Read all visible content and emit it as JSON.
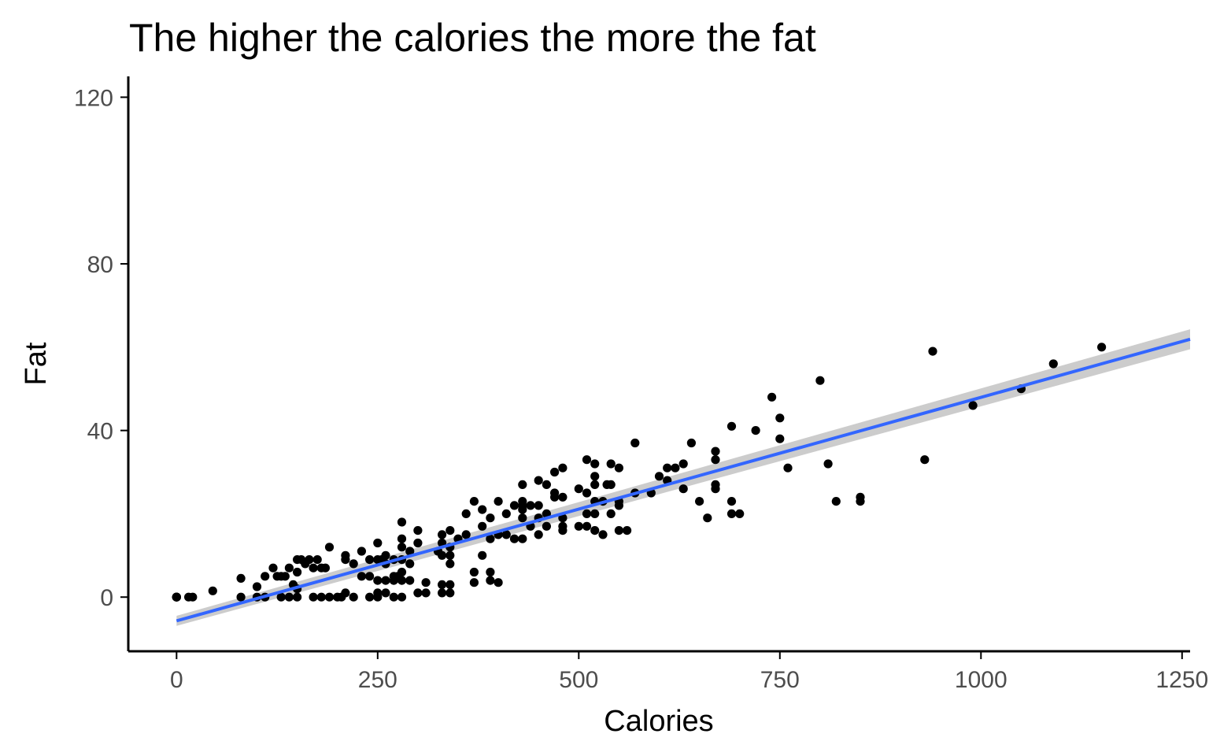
{
  "chart_data": {
    "type": "scatter",
    "title": "The higher the calories the more the fat",
    "xlabel": "Calories",
    "ylabel": "Fat",
    "xlim": [
      -60,
      1260
    ],
    "ylim": [
      -13,
      125
    ],
    "xticks": [
      0,
      250,
      500,
      750,
      1000,
      1250
    ],
    "xtick_labels": [
      "0",
      "250",
      "500",
      "750",
      "1000",
      "1250"
    ],
    "yticks": [
      0,
      40,
      80,
      120
    ],
    "ytick_labels": [
      "0",
      "40",
      "80",
      "120"
    ],
    "grid": false,
    "legend": "none",
    "colors": {
      "points": "#000000",
      "fit_line": "#3366ff",
      "confidence_band": "#cccccc",
      "axis": "#000000",
      "tick_label": "#4d4d4d"
    },
    "fit": {
      "method": "linear",
      "x": [
        0,
        1260
      ],
      "y": [
        -5.7,
        61.9
      ],
      "band_halfwidth": [
        1.2,
        2.4
      ]
    },
    "series": [
      {
        "points": [
          [
            0,
            0
          ],
          [
            0,
            0
          ],
          [
            0,
            0
          ],
          [
            0,
            0
          ],
          [
            0,
            0
          ],
          [
            15,
            0
          ],
          [
            20,
            0
          ],
          [
            45,
            1.5
          ],
          [
            80,
            4.5
          ],
          [
            80,
            0
          ],
          [
            100,
            2.5
          ],
          [
            100,
            0
          ],
          [
            110,
            0
          ],
          [
            110,
            5
          ],
          [
            120,
            7
          ],
          [
            125,
            5
          ],
          [
            130,
            5
          ],
          [
            130,
            0
          ],
          [
            135,
            5
          ],
          [
            140,
            7
          ],
          [
            140,
            0
          ],
          [
            145,
            3
          ],
          [
            150,
            6
          ],
          [
            150,
            2
          ],
          [
            150,
            9
          ],
          [
            150,
            0
          ],
          [
            155,
            9
          ],
          [
            160,
            8
          ],
          [
            165,
            9
          ],
          [
            170,
            7
          ],
          [
            170,
            0
          ],
          [
            175,
            9
          ],
          [
            180,
            7
          ],
          [
            180,
            0
          ],
          [
            185,
            7
          ],
          [
            190,
            12
          ],
          [
            190,
            0
          ],
          [
            200,
            0
          ],
          [
            205,
            0
          ],
          [
            210,
            1
          ],
          [
            210,
            10
          ],
          [
            210,
            9
          ],
          [
            220,
            8
          ],
          [
            220,
            0
          ],
          [
            230,
            11
          ],
          [
            230,
            5
          ],
          [
            240,
            9
          ],
          [
            240,
            5
          ],
          [
            240,
            0
          ],
          [
            250,
            13
          ],
          [
            250,
            9
          ],
          [
            250,
            4
          ],
          [
            250,
            1
          ],
          [
            250,
            0
          ],
          [
            255,
            9
          ],
          [
            260,
            10
          ],
          [
            260,
            8
          ],
          [
            260,
            4
          ],
          [
            260,
            1
          ],
          [
            270,
            9
          ],
          [
            270,
            5
          ],
          [
            270,
            4
          ],
          [
            270,
            0
          ],
          [
            275,
            5
          ],
          [
            280,
            18
          ],
          [
            280,
            14
          ],
          [
            280,
            12
          ],
          [
            280,
            9
          ],
          [
            280,
            6
          ],
          [
            280,
            4
          ],
          [
            280,
            0
          ],
          [
            290,
            11
          ],
          [
            290,
            8
          ],
          [
            290,
            4
          ],
          [
            300,
            16
          ],
          [
            300,
            13
          ],
          [
            300,
            1
          ],
          [
            310,
            3.5
          ],
          [
            310,
            1
          ],
          [
            325,
            11
          ],
          [
            330,
            15
          ],
          [
            330,
            13
          ],
          [
            330,
            10
          ],
          [
            330,
            3
          ],
          [
            330,
            1
          ],
          [
            340,
            16
          ],
          [
            340,
            12
          ],
          [
            340,
            10
          ],
          [
            340,
            8
          ],
          [
            340,
            3
          ],
          [
            340,
            1
          ],
          [
            350,
            14
          ],
          [
            360,
            20
          ],
          [
            360,
            15
          ],
          [
            370,
            23
          ],
          [
            370,
            6
          ],
          [
            370,
            3.5
          ],
          [
            380,
            21
          ],
          [
            380,
            17
          ],
          [
            380,
            10
          ],
          [
            390,
            19
          ],
          [
            390,
            14
          ],
          [
            390,
            6
          ],
          [
            390,
            4
          ],
          [
            400,
            23
          ],
          [
            400,
            15
          ],
          [
            400,
            3.5
          ],
          [
            410,
            20
          ],
          [
            410,
            15
          ],
          [
            420,
            14
          ],
          [
            420,
            22
          ],
          [
            430,
            27
          ],
          [
            430,
            23
          ],
          [
            430,
            22
          ],
          [
            430,
            21
          ],
          [
            430,
            19
          ],
          [
            430,
            14
          ],
          [
            440,
            22
          ],
          [
            440,
            17
          ],
          [
            450,
            28
          ],
          [
            450,
            22
          ],
          [
            450,
            19
          ],
          [
            450,
            15
          ],
          [
            460,
            27
          ],
          [
            460,
            20
          ],
          [
            460,
            17
          ],
          [
            470,
            30
          ],
          [
            470,
            25
          ],
          [
            470,
            24
          ],
          [
            480,
            31
          ],
          [
            480,
            24
          ],
          [
            480,
            19
          ],
          [
            480,
            17
          ],
          [
            480,
            16
          ],
          [
            500,
            26
          ],
          [
            500,
            17
          ],
          [
            510,
            33
          ],
          [
            510,
            25
          ],
          [
            510,
            20
          ],
          [
            510,
            17
          ],
          [
            520,
            32
          ],
          [
            520,
            29
          ],
          [
            520,
            27
          ],
          [
            520,
            23
          ],
          [
            520,
            20
          ],
          [
            520,
            16
          ],
          [
            530,
            23
          ],
          [
            530,
            15
          ],
          [
            535,
            27
          ],
          [
            540,
            32
          ],
          [
            540,
            27
          ],
          [
            540,
            20
          ],
          [
            550,
            31
          ],
          [
            550,
            23
          ],
          [
            550,
            22
          ],
          [
            550,
            16
          ],
          [
            560,
            16
          ],
          [
            570,
            37
          ],
          [
            570,
            25
          ],
          [
            590,
            25
          ],
          [
            600,
            29
          ],
          [
            610,
            31
          ],
          [
            610,
            28
          ],
          [
            620,
            31
          ],
          [
            630,
            32
          ],
          [
            630,
            26
          ],
          [
            640,
            37
          ],
          [
            650,
            23
          ],
          [
            660,
            19
          ],
          [
            670,
            35
          ],
          [
            670,
            33
          ],
          [
            670,
            27
          ],
          [
            670,
            26
          ],
          [
            690,
            41
          ],
          [
            690,
            23
          ],
          [
            690,
            20
          ],
          [
            700,
            20
          ],
          [
            720,
            40
          ],
          [
            740,
            48
          ],
          [
            750,
            43
          ],
          [
            750,
            38
          ],
          [
            760,
            31
          ],
          [
            800,
            52
          ],
          [
            810,
            32
          ],
          [
            820,
            23
          ],
          [
            850,
            24
          ],
          [
            850,
            23
          ],
          [
            930,
            33
          ],
          [
            940,
            59
          ],
          [
            990,
            46
          ],
          [
            1050,
            50
          ],
          [
            1090,
            56
          ],
          [
            1150,
            60
          ]
        ]
      }
    ]
  }
}
